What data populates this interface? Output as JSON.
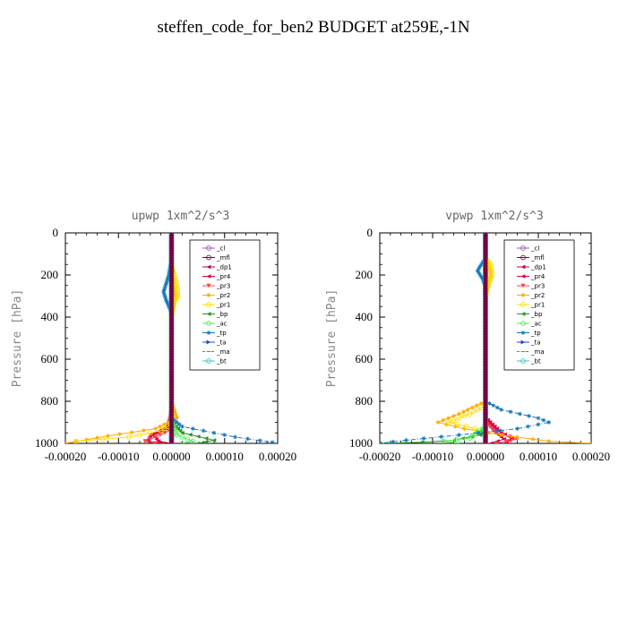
{
  "title": "steffen_code_for_ben2  BUDGET at259E,-1N",
  "chart_data": [
    {
      "type": "line",
      "title": "upwp   1xm^2/s^3",
      "ylabel": "Pressure [hPa]",
      "xlim": [
        -0.0002,
        0.0002
      ],
      "ylim": [
        0,
        1000
      ],
      "y_inverted": true,
      "xticks": [
        "-0.00020",
        "-0.00010",
        "0.00000",
        "0.00010",
        "0.00020"
      ],
      "yticks": [
        "0",
        "200",
        "400",
        "600",
        "800",
        "1000"
      ],
      "legend_position": "top-right",
      "series": [
        {
          "name": "_cl",
          "color": "#9b59b6",
          "marker": "o",
          "points": [
            [
              0,
              0
            ],
            [
              0,
              200
            ],
            [
              0,
              500
            ],
            [
              0,
              800
            ],
            [
              0,
              900
            ],
            [
              0,
              1000
            ]
          ]
        },
        {
          "name": "_mfl",
          "color": "#800040",
          "marker": "o",
          "points": [
            [
              0,
              0
            ],
            [
              0,
              200
            ],
            [
              0,
              500
            ],
            [
              0,
              800
            ],
            [
              0,
              900
            ],
            [
              0,
              1000
            ]
          ]
        },
        {
          "name": "_dp1",
          "color": "#c0005a",
          "marker": "<",
          "points": [
            [
              0,
              800
            ],
            [
              -5e-06,
              920
            ],
            [
              -4e-05,
              960
            ],
            [
              -4.5e-05,
              990
            ],
            [
              -2e-05,
              1000
            ]
          ]
        },
        {
          "name": "_pr4",
          "color": "#e0003c",
          "marker": "<",
          "points": [
            [
              0,
              850
            ],
            [
              -1e-05,
              930
            ],
            [
              -3.5e-05,
              960
            ],
            [
              -2.5e-05,
              990
            ],
            [
              0,
              1000
            ]
          ]
        },
        {
          "name": "_pr3",
          "color": "#ff4444",
          "marker": "v",
          "points": [
            [
              0,
              880
            ],
            [
              5e-06,
              930
            ],
            [
              -3e-05,
              970
            ],
            [
              -5e-05,
              990
            ],
            [
              -3e-05,
              1000
            ]
          ]
        },
        {
          "name": "_pr2",
          "color": "#ffaa00",
          "marker": "*",
          "points": [
            [
              0,
              100
            ],
            [
              5e-06,
              250
            ],
            [
              8e-06,
              300
            ],
            [
              0,
              400
            ],
            [
              0,
              800
            ],
            [
              1e-05,
              880
            ],
            [
              -3e-05,
              930
            ],
            [
              -0.00012,
              965
            ],
            [
              -0.0002,
              1000
            ]
          ]
        },
        {
          "name": "_pr1",
          "color": "#ffdd00",
          "marker": "o",
          "points": [
            [
              0,
              150
            ],
            [
              1e-05,
              250
            ],
            [
              1.2e-05,
              300
            ],
            [
              5e-06,
              330
            ],
            [
              0,
              400
            ],
            [
              0,
              850
            ],
            [
              5e-06,
              900
            ],
            [
              -2e-05,
              940
            ],
            [
              -8e-05,
              970
            ],
            [
              -0.00018,
              990
            ]
          ]
        },
        {
          "name": "_bp",
          "color": "#229922",
          "marker": "<",
          "points": [
            [
              0,
              900
            ],
            [
              2e-05,
              950
            ],
            [
              8e-05,
              985
            ],
            [
              5e-05,
              1000
            ]
          ]
        },
        {
          "name": "_ac",
          "color": "#55ee55",
          "marker": "o",
          "points": [
            [
              0,
              900
            ],
            [
              1e-05,
              960
            ],
            [
              4e-05,
              990
            ],
            [
              2e-05,
              1000
            ]
          ]
        },
        {
          "name": "_tp",
          "color": "#1177bb",
          "marker": "*",
          "points": [
            [
              0,
              120
            ],
            [
              -5e-06,
              200
            ],
            [
              -1.5e-05,
              280
            ],
            [
              -1e-05,
              320
            ],
            [
              0,
              380
            ],
            [
              0,
              880
            ],
            [
              2e-05,
              920
            ],
            [
              0.00012,
              970
            ],
            [
              0.00019,
              995
            ]
          ]
        },
        {
          "name": "_ta",
          "color": "#2244cc",
          "marker": ">",
          "points": [
            [
              0,
              800
            ],
            [
              0,
              900
            ],
            [
              0,
              1000
            ]
          ]
        },
        {
          "name": "_ma",
          "color": "#5588aa",
          "marker": "-",
          "points": [
            [
              0,
              0
            ],
            [
              0,
              1000
            ]
          ]
        },
        {
          "name": "_bt",
          "color": "#33cccc",
          "marker": "o",
          "points": [
            [
              0,
              0
            ],
            [
              0,
              1000
            ]
          ]
        }
      ]
    },
    {
      "type": "line",
      "title": "vpwp   1xm^2/s^3",
      "ylabel": "Pressure [hPa]",
      "xlim": [
        -0.0002,
        0.0002
      ],
      "ylim": [
        0,
        1000
      ],
      "y_inverted": true,
      "xticks": [
        "-0.00020",
        "-0.00010",
        "0.00000",
        "0.00010",
        "0.00020"
      ],
      "yticks": [
        "0",
        "200",
        "400",
        "600",
        "800",
        "1000"
      ],
      "legend_position": "top-right",
      "series": [
        {
          "name": "_cl",
          "color": "#9b59b6",
          "marker": "o",
          "points": [
            [
              0,
              0
            ],
            [
              0,
              200
            ],
            [
              0,
              500
            ],
            [
              0,
              800
            ],
            [
              0,
              900
            ],
            [
              0,
              1000
            ]
          ]
        },
        {
          "name": "_mfl",
          "color": "#800040",
          "marker": "o",
          "points": [
            [
              0,
              0
            ],
            [
              0,
              200
            ],
            [
              0,
              500
            ],
            [
              0,
              800
            ],
            [
              0,
              900
            ],
            [
              0,
              1000
            ]
          ]
        },
        {
          "name": "_dp1",
          "color": "#c0005a",
          "marker": "<",
          "points": [
            [
              0,
              880
            ],
            [
              2e-05,
              950
            ],
            [
              3.5e-05,
              980
            ],
            [
              1e-05,
              1000
            ]
          ]
        },
        {
          "name": "_pr4",
          "color": "#e0003c",
          "marker": "<",
          "points": [
            [
              0,
              880
            ],
            [
              3e-05,
              950
            ],
            [
              5e-05,
              975
            ],
            [
              4e-05,
              995
            ]
          ]
        },
        {
          "name": "_pr3",
          "color": "#ff4444",
          "marker": "v",
          "points": [
            [
              0,
              900
            ],
            [
              2e-05,
              950
            ],
            [
              6e-05,
              980
            ],
            [
              2e-05,
              1000
            ]
          ]
        },
        {
          "name": "_pr2",
          "color": "#ffaa00",
          "marker": "*",
          "points": [
            [
              0,
              120
            ],
            [
              8e-06,
              170
            ],
            [
              1e-05,
              200
            ],
            [
              0,
              300
            ],
            [
              0,
              800
            ],
            [
              -5e-05,
              860
            ],
            [
              -9e-05,
              900
            ],
            [
              -4e-05,
              930
            ],
            [
              3e-05,
              960
            ],
            [
              0.00012,
              990
            ],
            [
              0.0002,
              1000
            ]
          ]
        },
        {
          "name": "_pr1",
          "color": "#ffdd00",
          "marker": "o",
          "points": [
            [
              0,
              120
            ],
            [
              1e-05,
              150
            ],
            [
              1.2e-05,
              200
            ],
            [
              5e-06,
              250
            ],
            [
              0,
              300
            ],
            [
              0,
              820
            ],
            [
              -3e-05,
              860
            ],
            [
              -7e-05,
              900
            ],
            [
              -2e-05,
              930
            ]
          ]
        },
        {
          "name": "_bp",
          "color": "#229922",
          "marker": "<",
          "points": [
            [
              0,
              900
            ],
            [
              -1e-05,
              960
            ],
            [
              -6e-05,
              985
            ],
            [
              -0.00012,
              995
            ],
            [
              -0.0002,
              1000
            ]
          ]
        },
        {
          "name": "_ac",
          "color": "#55ee55",
          "marker": "o",
          "points": [
            [
              0,
              920
            ],
            [
              -3e-05,
              975
            ],
            [
              -8e-05,
              990
            ],
            [
              -5e-05,
              1000
            ]
          ]
        },
        {
          "name": "_tp",
          "color": "#1177bb",
          "marker": "*",
          "points": [
            [
              0,
              120
            ],
            [
              -8e-06,
              150
            ],
            [
              -1.5e-05,
              180
            ],
            [
              -5e-06,
              220
            ],
            [
              0,
              260
            ],
            [
              0,
              800
            ],
            [
              3e-05,
              840
            ],
            [
              0.0001,
              880
            ],
            [
              0.00012,
              900
            ],
            [
              6e-05,
              930
            ],
            [
              -5e-05,
              960
            ],
            [
              -0.00015,
              985
            ],
            [
              -0.0002,
              1000
            ]
          ]
        },
        {
          "name": "_ta",
          "color": "#2244cc",
          "marker": ">",
          "points": [
            [
              0,
              800
            ],
            [
              0,
              900
            ],
            [
              0,
              1000
            ]
          ]
        },
        {
          "name": "_ma",
          "color": "#5588aa",
          "marker": "-",
          "points": [
            [
              0,
              0
            ],
            [
              0,
              1000
            ]
          ]
        },
        {
          "name": "_bt",
          "color": "#33cccc",
          "marker": "o",
          "points": [
            [
              0,
              0
            ],
            [
              0,
              1000
            ]
          ]
        }
      ]
    }
  ]
}
